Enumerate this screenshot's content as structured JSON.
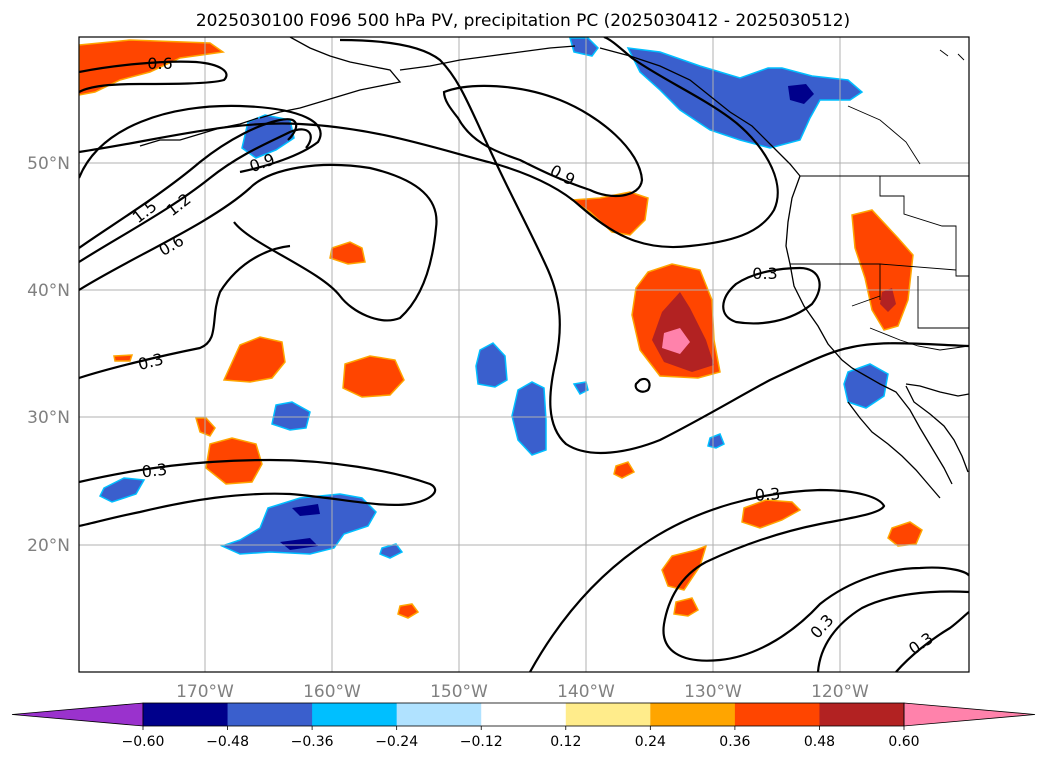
{
  "title": "2025030100 F096 500 hPa PV, precipitation PC (2025030412 - 2025030512)",
  "latitude_labels": [
    "50°N",
    "40°N",
    "30°N",
    "20°N"
  ],
  "longitude_labels": [
    "170°W",
    "160°W",
    "150°W",
    "140°W",
    "130°W",
    "120°W"
  ],
  "contour_labels": [
    "0.6",
    "0.9",
    "1.5",
    "1.2",
    "0.6",
    "0.9",
    "0.3",
    "0.3",
    "0.3",
    "0.3",
    "0.3",
    "0.3"
  ],
  "colorbar": {
    "tick_labels": [
      "−0.60",
      "−0.48",
      "−0.36",
      "−0.24",
      "−0.12",
      "0.12",
      "0.24",
      "0.36",
      "0.48",
      "0.60"
    ],
    "colors": [
      "#9a32cd",
      "#00008b",
      "#3a5fcd",
      "#00bfff",
      "#b0e2ff",
      "#ffffff",
      "#ffec8b",
      "#ffa500",
      "#ff4500",
      "#b22222",
      "#ff82ab"
    ]
  },
  "colors": {
    "contour": "#000000",
    "coastline": "#000000",
    "gridline": "#b0b0b0",
    "axis_label": "#808080"
  }
}
